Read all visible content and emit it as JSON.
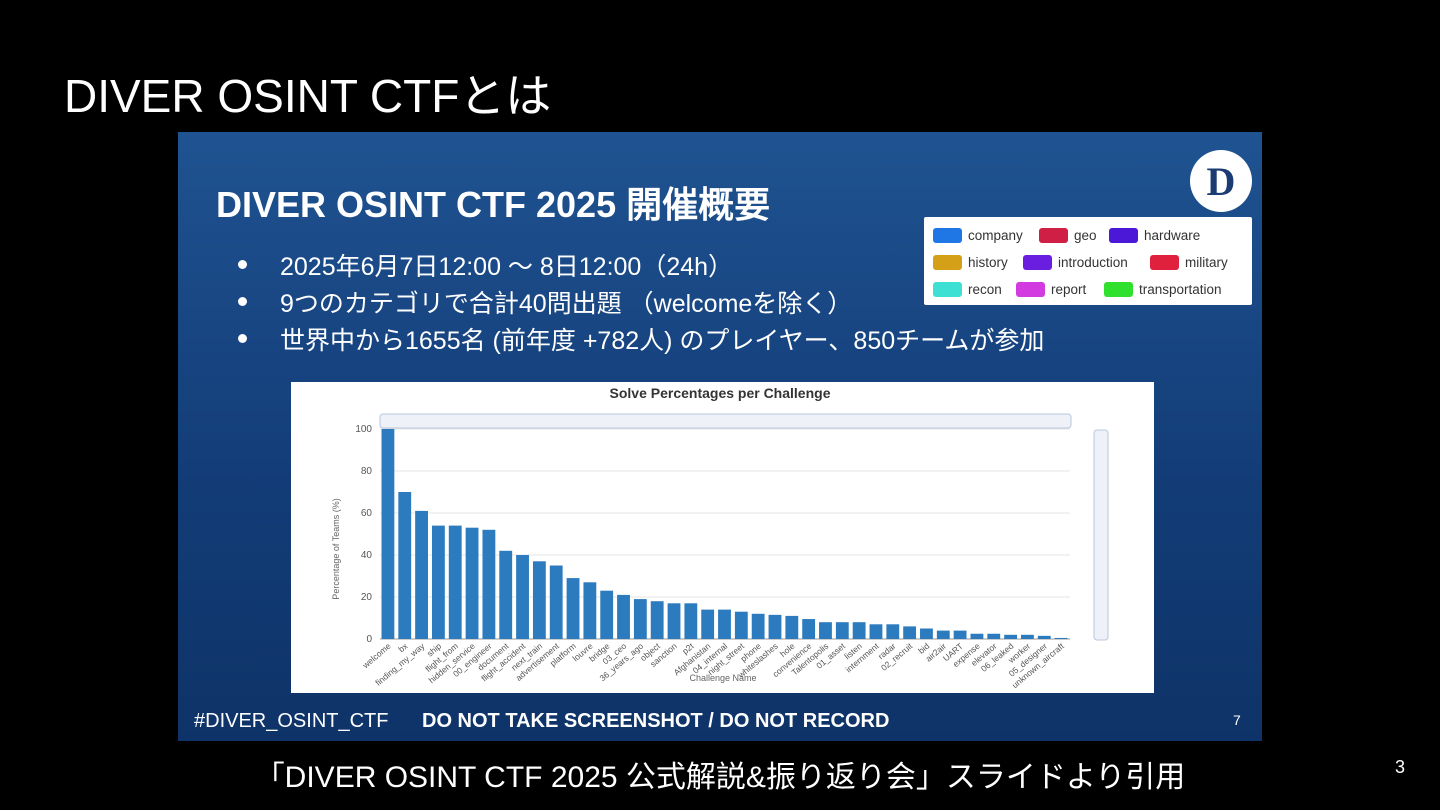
{
  "outer_title": "DIVER OSINT CTFとは",
  "slide": {
    "title": "DIVER OSINT CTF 2025 開催概要",
    "logo_text": "D",
    "bullets": [
      "2025年6月7日12:00 〜 8日12:00（24h）",
      "9つのカテゴリで合計40問出題 （welcomeを除く）",
      "世界中から1655名 (前年度 +782人) のプレイヤー、850チームが参加"
    ],
    "legend": [
      {
        "label": "company",
        "color": "#1f77e6"
      },
      {
        "label": "geo",
        "color": "#d01f45"
      },
      {
        "label": "hardware",
        "color": "#4c18d8"
      },
      {
        "label": "history",
        "color": "#d4a017"
      },
      {
        "label": "introduction",
        "color": "#6a1fe0"
      },
      {
        "label": "military",
        "color": "#e0213d"
      },
      {
        "label": "recon",
        "color": "#3fe0d4"
      },
      {
        "label": "report",
        "color": "#d23be0"
      },
      {
        "label": "transportation",
        "color": "#2fe02f"
      }
    ],
    "footer_hashtag": "#DIVER_OSINT_CTF",
    "footer_warning": "DO NOT TAKE SCREENSHOT / DO NOT RECORD",
    "slide_number": "7"
  },
  "chart_data": {
    "type": "bar",
    "title": "Solve Percentages per Challenge",
    "xlabel": "Challenge Name",
    "ylabel": "Percentage of Teams (%)",
    "ylim": [
      0,
      100
    ],
    "yticks": [
      0,
      20,
      40,
      60,
      80,
      100
    ],
    "bar_color": "#2c7bbf",
    "grid": true,
    "categories": [
      "welcome",
      "bx",
      "finding_my_way",
      "ship",
      "flight_from",
      "hidden_service",
      "00_engineer",
      "document",
      "flight_accident",
      "next_train",
      "advertisement",
      "platform",
      "louvre",
      "bridge",
      "03_ceo",
      "36_years_ago",
      "object",
      "sanction",
      "p2t",
      "Afghanistan",
      "04_internal",
      "night_street",
      "phone",
      "whiteslashes",
      "hole",
      "convenience",
      "Talentopolis",
      "01_asset",
      "listen",
      "internment",
      "radar",
      "02_recruit",
      "bid",
      "air2air",
      "UART",
      "expense",
      "elevator",
      "06_leaked",
      "worker",
      "05_designer",
      "unknown_aircraft"
    ],
    "values": [
      100,
      70,
      61,
      54,
      54,
      53,
      52,
      42,
      40,
      37,
      35,
      29,
      27,
      23,
      21,
      19,
      18,
      17,
      17,
      14,
      14,
      13,
      12,
      11.5,
      11,
      9.5,
      8,
      8,
      8,
      7,
      7,
      6,
      5,
      4,
      4,
      2.5,
      2.5,
      2,
      2,
      1.5,
      0.5
    ]
  },
  "caption": "「DIVER OSINT CTF 2025 公式解説&振り返り会」スライドより引用",
  "page_number": "3"
}
